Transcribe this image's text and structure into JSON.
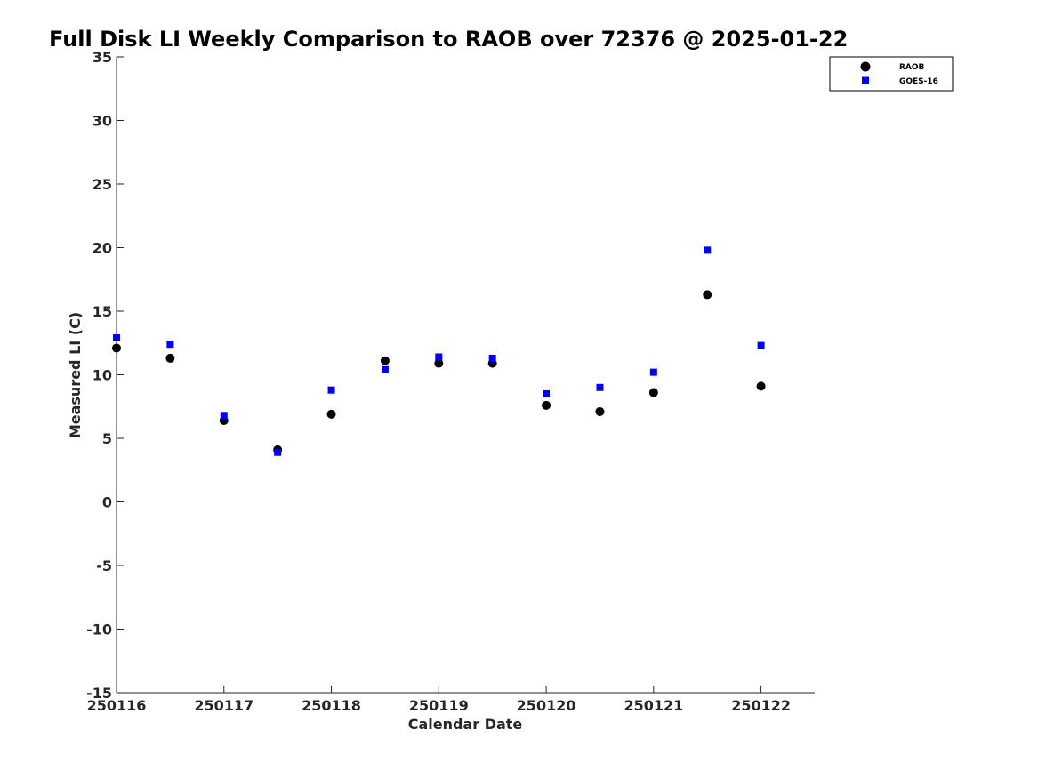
{
  "chart_data": {
    "type": "scatter",
    "title": "Full Disk LI Weekly Comparison to RAOB over 72376 @ 2025-01-22",
    "xlabel": "Calendar Date",
    "ylabel": "Measured LI (C)",
    "x_tick_labels": [
      "250116",
      "250117",
      "250118",
      "250119",
      "250120",
      "250121",
      "250122"
    ],
    "x_ticks": [
      0,
      1,
      2,
      3,
      4,
      5,
      6
    ],
    "xlim": [
      0,
      6.5
    ],
    "ylim": [
      -15,
      35
    ],
    "y_ticks": [
      -15,
      -10,
      -5,
      0,
      5,
      10,
      15,
      20,
      25,
      30,
      35
    ],
    "y_tick_labels": [
      "-15",
      "-10",
      "-5",
      "0",
      "5",
      "10",
      "15",
      "20",
      "25",
      "30",
      "35"
    ],
    "legend_position": "top-right",
    "grid": false,
    "x": [
      0,
      0.5,
      1,
      1.5,
      2,
      2.5,
      3,
      3.5,
      4,
      4.5,
      5,
      5.5,
      6
    ],
    "series": [
      {
        "name": "RAOB",
        "marker": "circle",
        "color": "#000000",
        "values": [
          12.1,
          11.3,
          6.4,
          4.1,
          6.9,
          11.1,
          10.9,
          10.9,
          7.6,
          7.1,
          8.6,
          16.3,
          9.1
        ]
      },
      {
        "name": "GOES-16",
        "marker": "square",
        "color": "#0000ff",
        "values": [
          12.9,
          12.4,
          6.8,
          3.9,
          8.8,
          10.4,
          11.4,
          11.3,
          8.5,
          9.0,
          10.2,
          19.8,
          12.3
        ]
      }
    ]
  }
}
